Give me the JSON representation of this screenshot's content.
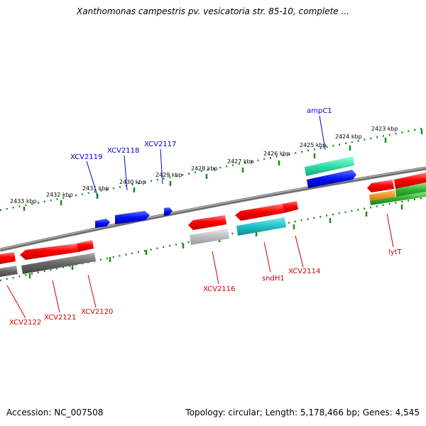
{
  "title": "Xanthomonas campestris pv. vesicatoria str. 85-10, complete ...",
  "footer": {
    "accession": "Accession: NC_007508",
    "topology": "Topology: circular; Length: 5,178,466 bp; Genes: 4,545"
  },
  "scale_ticks": [
    "2433 kbp",
    "2432 kbp",
    "2431 kbp",
    "2430 kbp",
    "2429 kbp",
    "2428 kbp",
    "2427 kbp",
    "2426 kbp",
    "2425 kbp",
    "2424 kbp",
    "2423 kbp"
  ],
  "genes_forward": [
    "XCV2119",
    "XCV2118",
    "XCV2117",
    "ampC1"
  ],
  "genes_reverse": [
    "XCV2122",
    "XCV2121",
    "XCV2120",
    "XCV2116",
    "sndH1",
    "XCV2114",
    "lytT"
  ],
  "colors": {
    "forward_label": "#0000cc",
    "reverse_label": "#cc0000",
    "tick_green": "#1a8c1a",
    "backbone": "#808080"
  }
}
